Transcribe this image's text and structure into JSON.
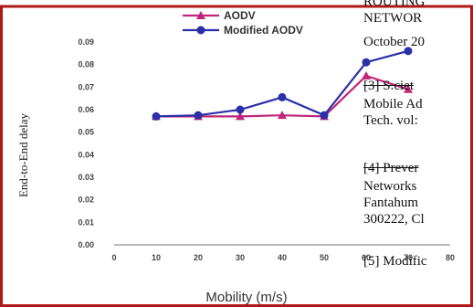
{
  "colors": {
    "frame": "#b01818",
    "aodv": "#c0267a",
    "modified_aodv": "#2b2fa8",
    "axis": "#777777"
  },
  "legend": {
    "aodv_label": "AODV",
    "modified_label": "Modified AODV",
    "placement": "top-left"
  },
  "chart_data": {
    "type": "line",
    "xlabel": "Mobility (m/s)",
    "ylabel": "End-to-End delay",
    "x": [
      10,
      20,
      30,
      40,
      50,
      60,
      70
    ],
    "xticks": [
      "0",
      "10",
      "20",
      "30",
      "40",
      "50",
      "60",
      "70",
      "80"
    ],
    "yticks": [
      "0.00",
      "0.01",
      "0.02",
      "0.03",
      "0.04",
      "0.05",
      "0.06",
      "0.07",
      "0.08",
      "0.09"
    ],
    "xlim": [
      0,
      80
    ],
    "ylim": [
      0,
      0.09
    ],
    "grid": false,
    "series": [
      {
        "name": "AODV",
        "marker": "triangle",
        "values": [
          0.057,
          0.057,
          0.057,
          0.0575,
          0.057,
          0.075,
          0.069
        ]
      },
      {
        "name": "Modified AODV",
        "marker": "circle",
        "values": [
          0.057,
          0.0575,
          0.06,
          0.0655,
          0.0575,
          0.081,
          0.086
        ]
      }
    ]
  },
  "document": {
    "lines": [
      "ROUTING",
      "NETWOR",
      "October 20",
      "[3] S.ciet",
      "Mobile Ad",
      "Tech. vol:",
      "[4] Prever",
      "Networks",
      "Fantahum",
      "300222, Cl",
      "[5] Modific"
    ]
  }
}
